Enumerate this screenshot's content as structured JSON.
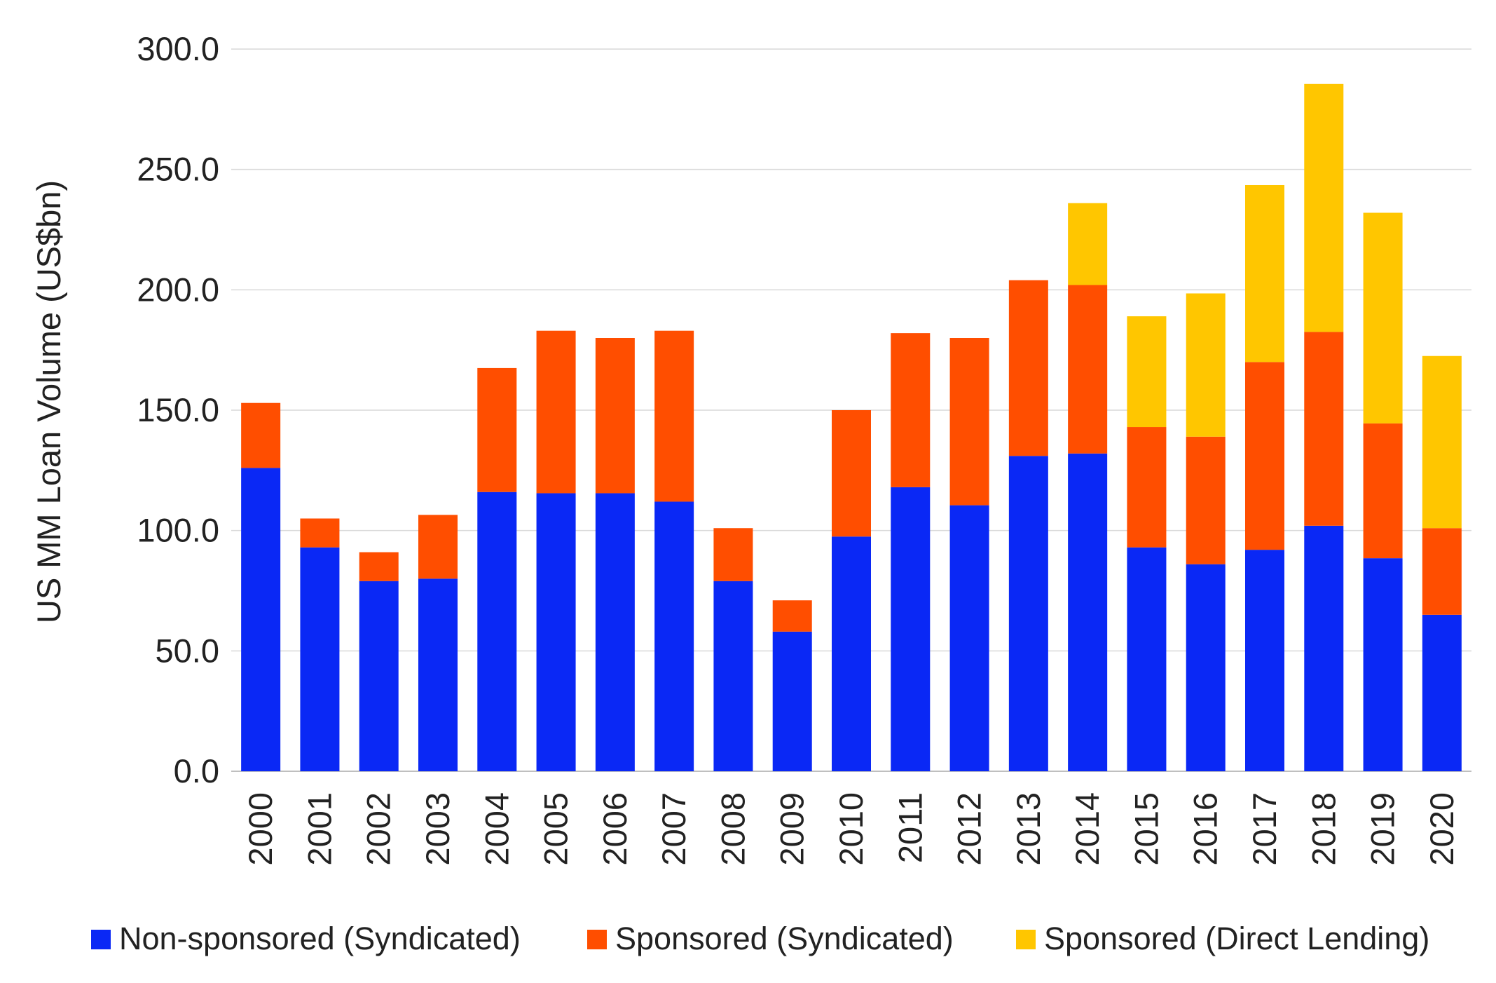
{
  "chart_data": {
    "type": "bar",
    "stacked": true,
    "ylabel": "US MM Loan Volume (US$bn)",
    "xlabel": "",
    "ylim": [
      0,
      300
    ],
    "yticks": [
      "0.0",
      "50.0",
      "100.0",
      "150.0",
      "200.0",
      "250.0",
      "300.0"
    ],
    "grid": "horizontal",
    "legend": "bottom",
    "categories": [
      "2000",
      "2001",
      "2002",
      "2003",
      "2004",
      "2005",
      "2006",
      "2007",
      "2008",
      "2009",
      "2010",
      "2011",
      "2012",
      "2013",
      "2014",
      "2015",
      "2016",
      "2017",
      "2018",
      "2019",
      "2020"
    ],
    "series": [
      {
        "name": "Non-sponsored (Syndicated)",
        "color": "#0A28F5",
        "values": [
          126,
          93,
          79,
          80,
          116,
          115.5,
          115.5,
          112,
          79,
          58,
          97.5,
          118,
          110.5,
          131,
          132,
          93,
          86,
          92,
          102,
          88.5,
          65
        ]
      },
      {
        "name": "Sponsored (Syndicated)",
        "color": "#FF4E00",
        "values": [
          27,
          12,
          12,
          26.5,
          51.5,
          67.5,
          64.5,
          71,
          22,
          13,
          52.5,
          64,
          69.5,
          73,
          70,
          50,
          53,
          78,
          80.5,
          56,
          36
        ]
      },
      {
        "name": "Sponsored (Direct Lending)",
        "color": "#FFC600",
        "values": [
          0,
          0,
          0,
          0,
          0,
          0,
          0,
          0,
          0,
          0,
          0,
          0,
          0,
          0,
          34,
          46,
          59.5,
          73.5,
          103,
          87.5,
          71.5
        ]
      }
    ]
  }
}
